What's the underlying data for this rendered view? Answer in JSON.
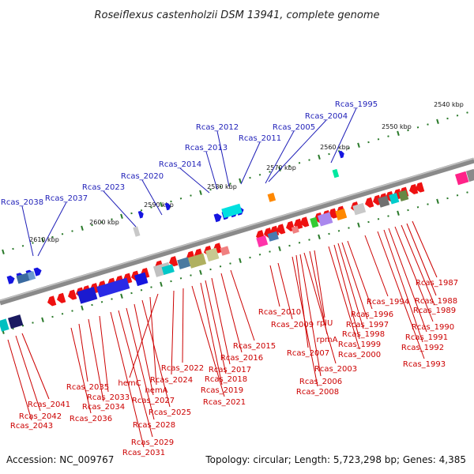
{
  "title": "Roseiflexus castenholzii DSM 13941, complete genome",
  "footer": {
    "accession": "Accession: NC_009767",
    "topology": "Topology: circular; Length: 5,723,298 bp; Genes: 4,385"
  },
  "colors": {
    "forward_label": "#1f1fb8",
    "reverse_label": "#cc0000",
    "forward_gene": "#1515e0",
    "reverse_gene": "#ee1111",
    "backbone": "#8a8a8a",
    "tick": "#2a7a2a"
  },
  "scale_ticks": [
    "2540 kbp",
    "2550 kbp",
    "2560 kbp",
    "2570 kbp",
    "2580 kbp",
    "2590 kbp",
    "2600 kbp",
    "2610 kbp"
  ],
  "forward_labels": [
    "Rcas_1995",
    "Rcas_2004",
    "Rcas_2005",
    "Rcas_2011",
    "Rcas_2012",
    "Rcas_2013",
    "Rcas_2014",
    "Rcas_2020",
    "Rcas_2023",
    "Rcas_2037",
    "Rcas_2038"
  ],
  "reverse_labels": [
    "Rcas_1987",
    "Rcas_1988",
    "Rcas_1989",
    "Rcas_1990",
    "Rcas_1991",
    "Rcas_1992",
    "Rcas_1993",
    "Rcas_1994",
    "Rcas_1996",
    "Rcas_1997",
    "Rcas_1998",
    "Rcas_1999",
    "Rcas_2000",
    "rplU",
    "rpmA",
    "Rcas_2003",
    "Rcas_2006",
    "Rcas_2007",
    "Rcas_2008",
    "Rcas_2009",
    "Rcas_2010",
    "Rcas_2016",
    "Rcas_2015",
    "Rcas_2017",
    "Rcas_2018",
    "Rcas_2019",
    "Rcas_2021",
    "Rcas_2022",
    "Rcas_2024",
    "hemC",
    "hemA",
    "Rcas_2025",
    "Rcas_2027",
    "Rcas_2028",
    "Rcas_2029",
    "Rcas_2031",
    "Rcas_2033",
    "Rcas_2034",
    "Rcas_2035",
    "Rcas_2036",
    "Rcas_2041",
    "Rcas_2042",
    "Rcas_2043"
  ]
}
